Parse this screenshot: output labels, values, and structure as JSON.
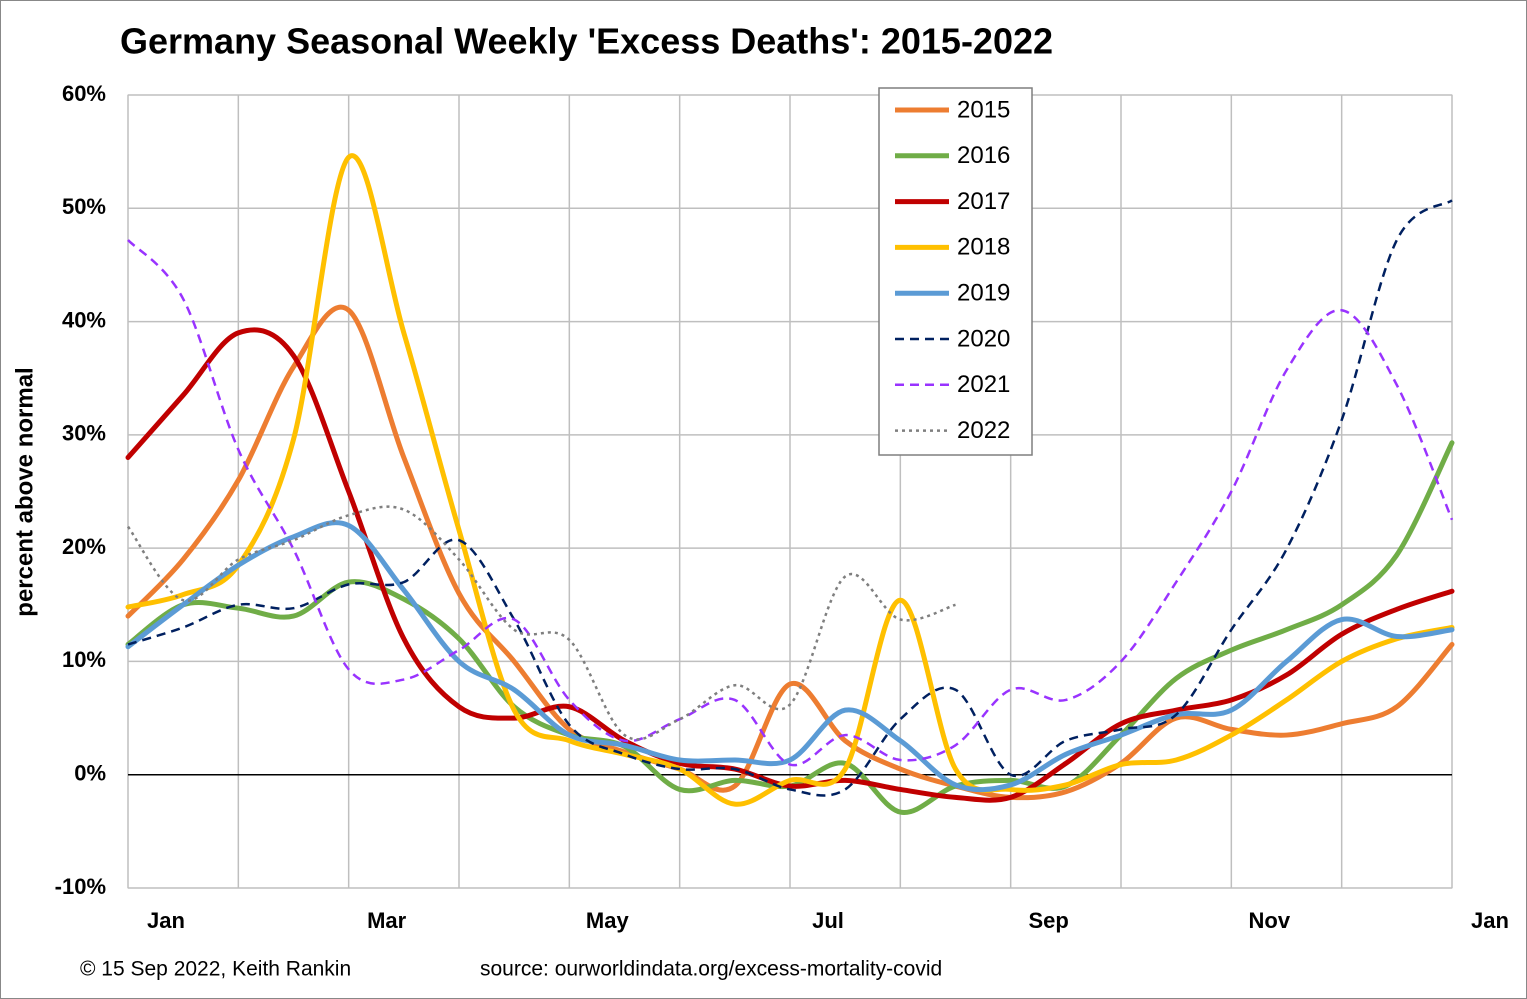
{
  "chart_data": {
    "type": "line",
    "title": "Germany Seasonal Weekly 'Excess Deaths': 2015-2022",
    "y_label": "percent above normal",
    "footer_left": "© 15 Sep 2022, Keith Rankin",
    "footer_right": "source: ourworldindata.org/excess-mortality-covid",
    "x": [
      0,
      0.5,
      1,
      1.5,
      2,
      2.5,
      3,
      3.5,
      4,
      4.5,
      5,
      5.5,
      6,
      6.5,
      7,
      7.5,
      8,
      8.5,
      9,
      9.5,
      10,
      10.5,
      11,
      11.5,
      12
    ],
    "xlim": [
      0,
      12
    ],
    "xgrid": [
      0,
      1,
      2,
      3,
      4,
      5,
      6,
      7,
      8,
      9,
      10,
      11,
      12
    ],
    "xticks": [
      {
        "value": 0,
        "label": "Jan"
      },
      {
        "value": 2,
        "label": "Mar"
      },
      {
        "value": 4,
        "label": "May"
      },
      {
        "value": 6,
        "label": "Jul"
      },
      {
        "value": 8,
        "label": "Sep"
      },
      {
        "value": 10,
        "label": "Nov"
      },
      {
        "value": 12,
        "label": "Jan"
      }
    ],
    "ylim": [
      -10,
      60
    ],
    "yticks": [
      {
        "value": -10,
        "label": "-10%"
      },
      {
        "value": 0,
        "label": "0%"
      },
      {
        "value": 10,
        "label": "10%"
      },
      {
        "value": 20,
        "label": "20%"
      },
      {
        "value": 30,
        "label": "30%"
      },
      {
        "value": 40,
        "label": "40%"
      },
      {
        "value": 50,
        "label": "50%"
      },
      {
        "value": 60,
        "label": "60%"
      }
    ],
    "grid": true,
    "legend": "top",
    "series": [
      {
        "name": "2015",
        "color": "#ed7d31",
        "style": "solid",
        "values": [
          14,
          19,
          26,
          36,
          41,
          28,
          16,
          10,
          4,
          2,
          0.5,
          -1,
          8,
          3,
          0.5,
          -1,
          -2,
          -1.5,
          1,
          5,
          4,
          3.5,
          4.5,
          6,
          11.5
        ]
      },
      {
        "name": "2016",
        "color": "#70ad47",
        "style": "solid",
        "values": [
          11.5,
          15,
          14.7,
          14,
          17,
          15.5,
          12,
          6,
          3.5,
          2.5,
          -1.3,
          -0.5,
          -1,
          1,
          -3.3,
          -1,
          -0.5,
          -1,
          3.5,
          8.5,
          11,
          12.8,
          15,
          19.4,
          29.3
        ]
      },
      {
        "name": "2017",
        "color": "#c00000",
        "style": "solid",
        "values": [
          28,
          33.5,
          39,
          37,
          25,
          12,
          6,
          5,
          6,
          3,
          1,
          0.5,
          -1,
          -0.5,
          -1.3,
          -2,
          -2,
          1,
          4.5,
          5.7,
          6.6,
          8.8,
          12.4,
          14.6,
          16.2
        ]
      },
      {
        "name": "2018",
        "color": "#ffc000",
        "style": "solid",
        "values": [
          14.8,
          15.9,
          18.5,
          29.6,
          54.5,
          39,
          21.6,
          5.7,
          3,
          1.8,
          0.5,
          -2.6,
          -0.5,
          0.5,
          15.4,
          0.5,
          -1.3,
          -0.9,
          0.9,
          1.3,
          3.5,
          6.6,
          10,
          12,
          13
        ]
      },
      {
        "name": "2019",
        "color": "#5b9bd5",
        "style": "solid",
        "values": [
          11.3,
          15,
          18.5,
          21,
          22,
          16.3,
          10,
          7.5,
          3.5,
          2.6,
          1.3,
          1.3,
          1.3,
          5.7,
          3,
          -0.9,
          -0.9,
          1.8,
          3.5,
          5.3,
          5.7,
          10,
          13.7,
          12.2,
          12.8
        ]
      },
      {
        "name": "2020",
        "color": "#002060",
        "style": "dashed",
        "values": [
          11.5,
          13,
          15,
          14.7,
          16.8,
          17,
          20.7,
          13.7,
          4.4,
          1.8,
          0.5,
          0.5,
          -1.3,
          -1.3,
          4.9,
          7.5,
          0,
          3,
          4,
          5.3,
          12.8,
          19.9,
          31.3,
          47.2,
          50.7
        ]
      },
      {
        "name": "2021",
        "color": "#9933ff",
        "style": "dashed",
        "values": [
          47.2,
          42,
          28.7,
          19.9,
          9.3,
          8.4,
          11,
          13.7,
          6.6,
          3,
          4.9,
          6.6,
          0.9,
          3.5,
          1.3,
          2.6,
          7.5,
          6.6,
          10,
          17,
          25,
          35.7,
          41,
          34.4,
          22.5
        ]
      },
      {
        "name": "2022",
        "color": "#7f7f7f",
        "style": "dotted",
        "values": [
          21.9,
          15.4,
          19,
          20.7,
          22.9,
          23.4,
          19,
          12.8,
          11.9,
          3.5,
          4.9,
          7.9,
          6.2,
          17.5,
          13.7,
          15,
          null,
          null,
          null,
          null,
          null,
          null,
          null,
          null,
          null
        ]
      }
    ]
  }
}
